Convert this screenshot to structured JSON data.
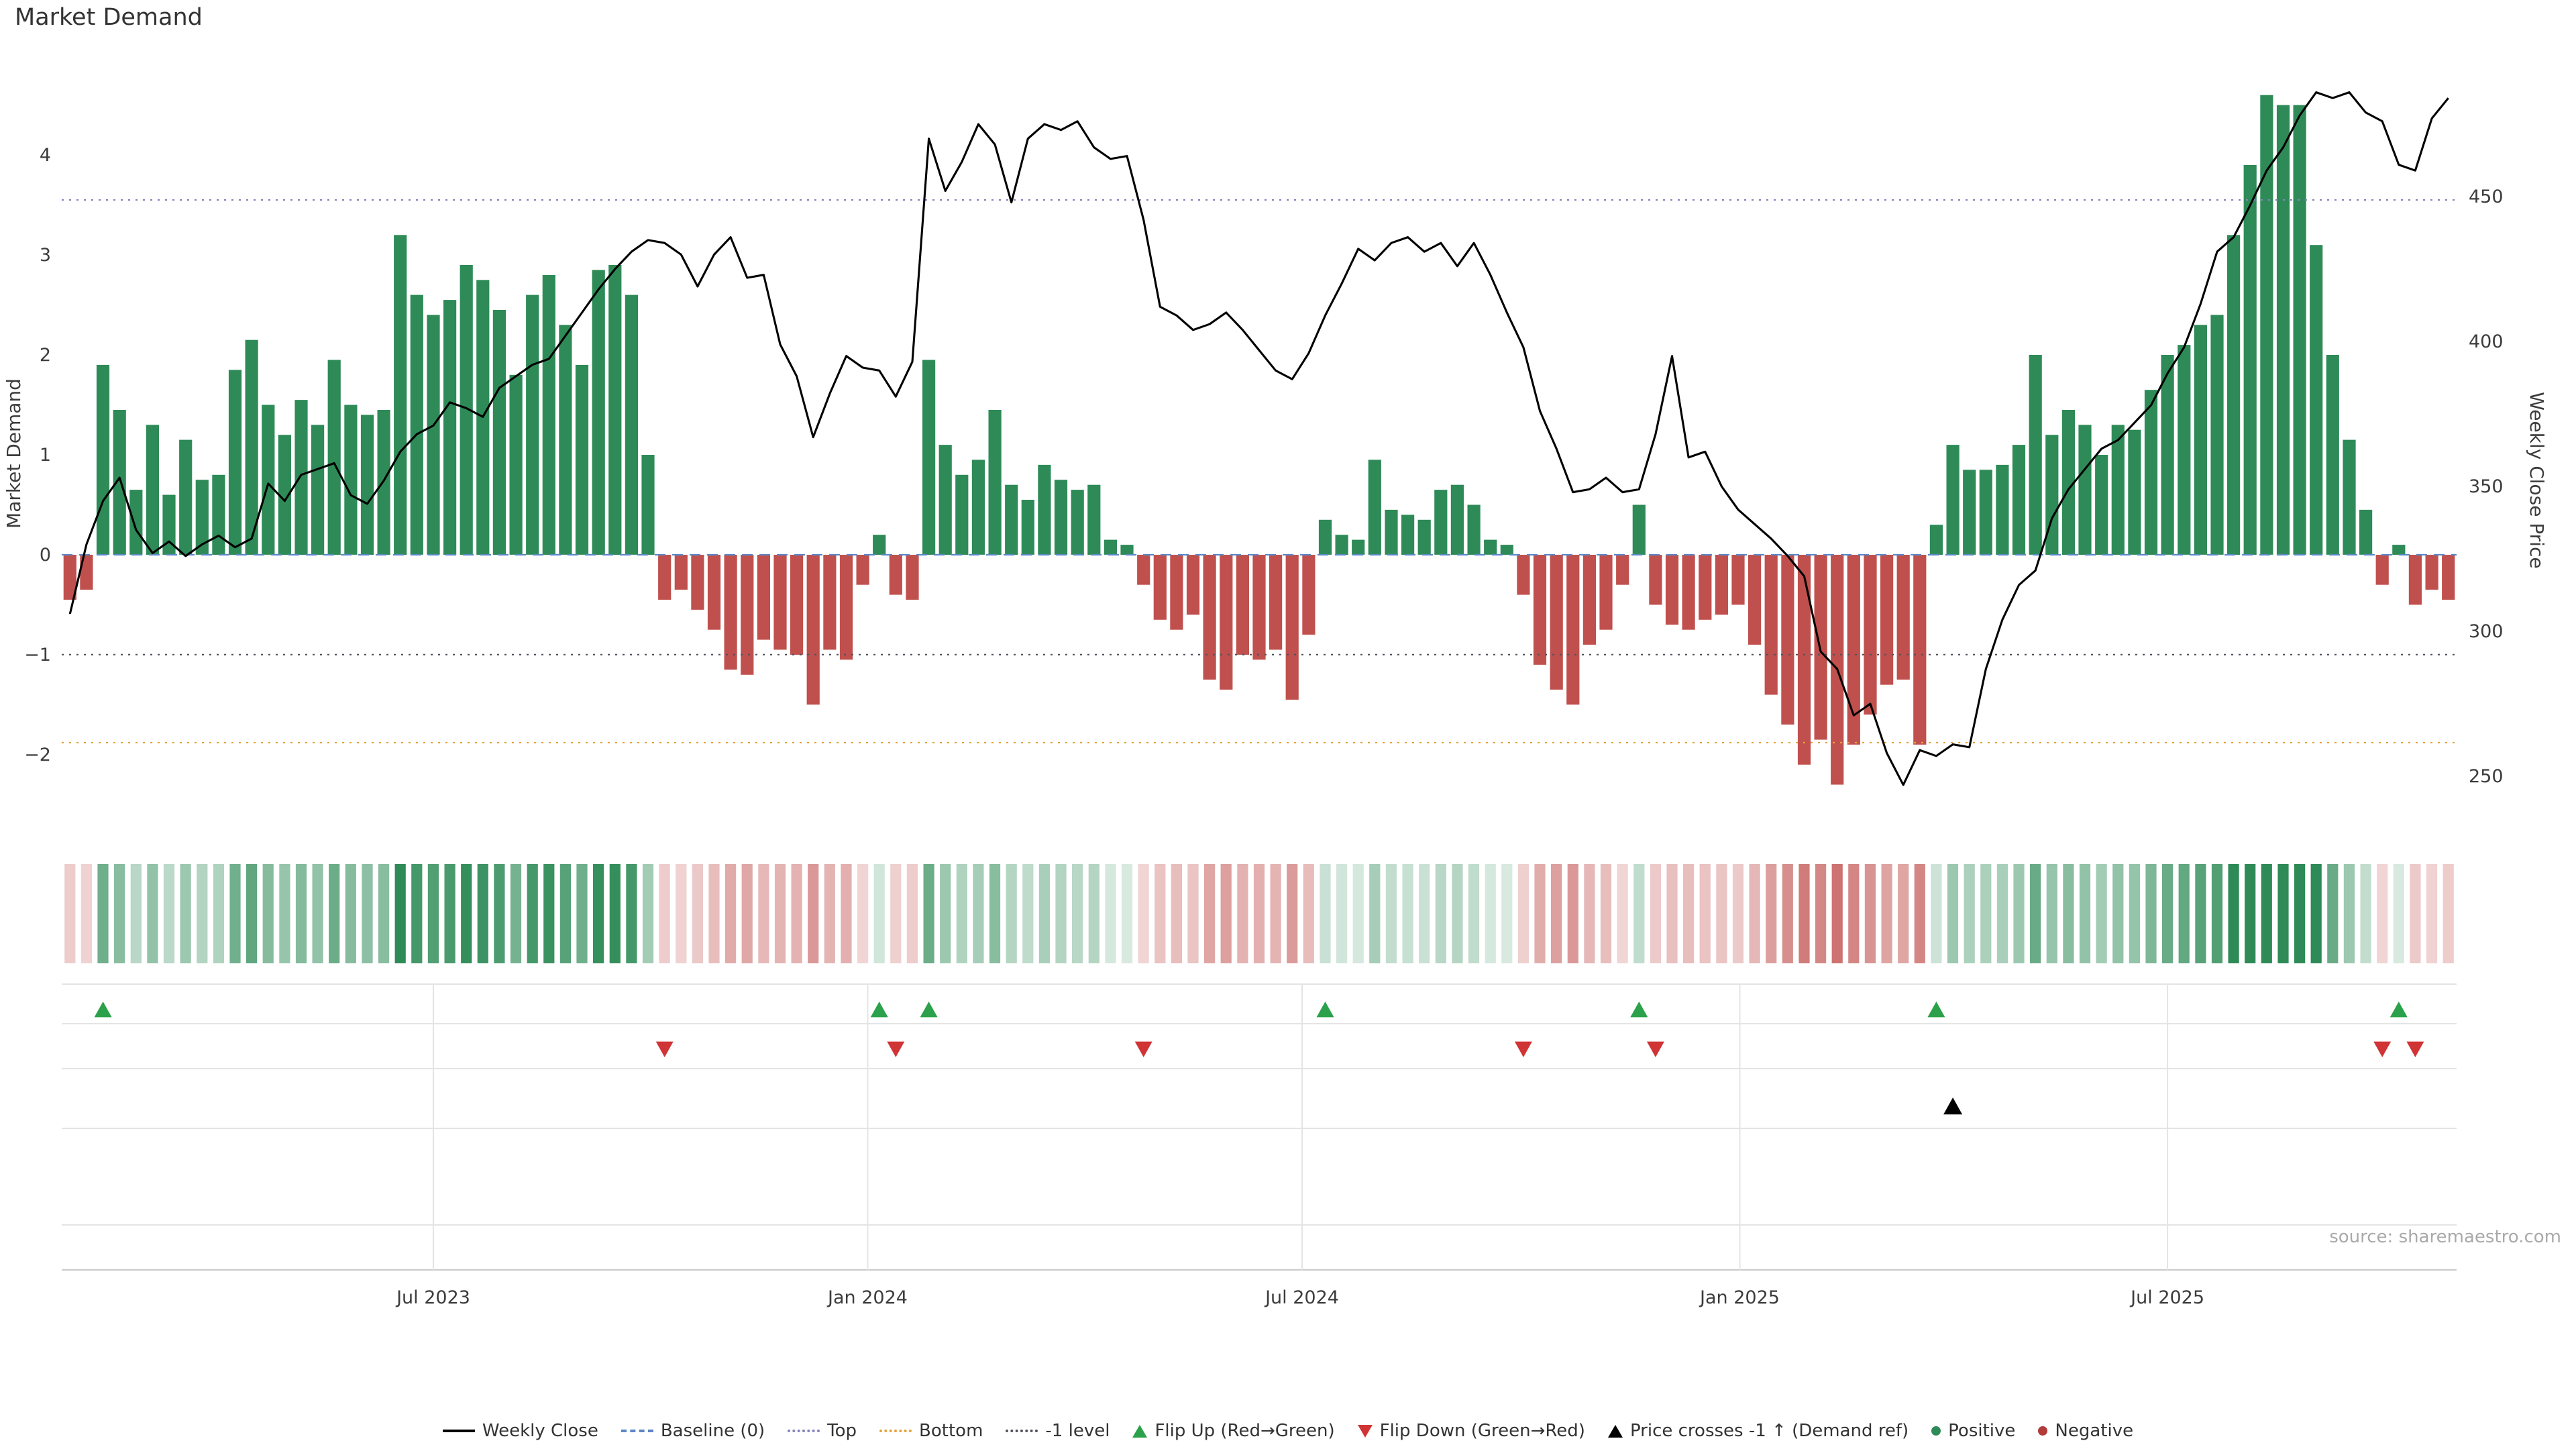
{
  "page": {
    "title": "Market Demand",
    "source": "source: sharemaestro.com"
  },
  "chart_data": {
    "type": "bar+line",
    "title": "Market Demand",
    "x": {
      "unit": "week",
      "count": 145,
      "ticks": [
        {
          "label": "Jul 2023",
          "index": 22
        },
        {
          "label": "Jan 2024",
          "index": 48.3
        },
        {
          "label": "Jul 2024",
          "index": 74.6
        },
        {
          "label": "Jan 2025",
          "index": 101.1
        },
        {
          "label": "Jul 2025",
          "index": 127
        }
      ]
    },
    "left_axis": {
      "label": "Market Demand",
      "range": [
        -2.86,
        4.88
      ],
      "ticks": [
        {
          "label": "−2",
          "value": -2
        },
        {
          "label": "−1",
          "value": -1
        },
        {
          "label": "0",
          "value": 0
        },
        {
          "label": "1",
          "value": 1
        },
        {
          "label": "2",
          "value": 2
        },
        {
          "label": "3",
          "value": 3
        },
        {
          "label": "4",
          "value": 4
        }
      ]
    },
    "right_axis": {
      "label": "Weekly Close Price",
      "range": [
        227.8,
        494.7
      ],
      "ticks": [
        {
          "label": "250",
          "value": 250
        },
        {
          "label": "300",
          "value": 300
        },
        {
          "label": "350",
          "value": 350
        },
        {
          "label": "400",
          "value": 400
        },
        {
          "label": "450",
          "value": 450
        }
      ]
    },
    "reference_lines": [
      {
        "name": "Baseline (0)",
        "value": 0,
        "style": "dashed",
        "color": "#5b87c5"
      },
      {
        "name": "Top",
        "value": 3.55,
        "style": "dotted",
        "color": "#8383c2"
      },
      {
        "name": "Bottom",
        "value": -1.88,
        "style": "dotted",
        "color": "#e5a23c"
      },
      {
        "name": "-1 level",
        "value": -1.0,
        "style": "dotted",
        "color": "#52525e"
      }
    ],
    "series": [
      {
        "name": "Market Demand",
        "type": "bar",
        "color_positive": "#2e8b57",
        "color_negative": "#c0504d",
        "values": [
          -0.45,
          -0.35,
          1.9,
          1.45,
          0.65,
          1.3,
          0.6,
          1.15,
          0.75,
          0.8,
          1.85,
          2.15,
          1.5,
          1.2,
          1.55,
          1.3,
          1.95,
          1.5,
          1.4,
          1.45,
          3.2,
          2.6,
          2.4,
          2.55,
          2.9,
          2.75,
          2.45,
          1.8,
          2.6,
          2.8,
          2.3,
          1.9,
          2.85,
          2.9,
          2.6,
          1.0,
          -0.45,
          -0.35,
          -0.55,
          -0.75,
          -1.15,
          -1.2,
          -0.85,
          -0.95,
          -1.0,
          -1.5,
          -0.95,
          -1.05,
          -0.3,
          0.2,
          -0.4,
          -0.45,
          1.95,
          1.1,
          0.8,
          0.95,
          1.45,
          0.7,
          0.55,
          0.9,
          0.75,
          0.65,
          0.7,
          0.15,
          0.1,
          -0.3,
          -0.65,
          -0.75,
          -0.6,
          -1.25,
          -1.35,
          -1.0,
          -1.05,
          -0.95,
          -1.45,
          -0.8,
          0.35,
          0.2,
          0.15,
          0.95,
          0.45,
          0.4,
          0.35,
          0.65,
          0.7,
          0.5,
          0.15,
          0.1,
          -0.4,
          -1.1,
          -1.35,
          -1.5,
          -0.9,
          -0.75,
          -0.3,
          0.5,
          -0.5,
          -0.7,
          -0.75,
          -0.65,
          -0.6,
          -0.5,
          -0.9,
          -1.4,
          -1.7,
          -2.1,
          -1.85,
          -2.3,
          -1.9,
          -1.6,
          -1.3,
          -1.25,
          -1.9,
          0.3,
          1.1,
          0.85,
          0.85,
          0.9,
          1.1,
          2.0,
          1.2,
          1.45,
          1.3,
          1.0,
          1.3,
          1.25,
          1.65,
          2.0,
          2.1,
          2.3,
          2.4,
          3.2,
          3.9,
          4.6,
          4.5,
          4.5,
          3.1,
          2.0,
          1.15,
          0.45,
          -0.3,
          0.1,
          -0.5,
          -0.35,
          -0.45
        ]
      },
      {
        "name": "Weekly Close",
        "type": "line",
        "color": "#000000",
        "values": [
          306,
          330,
          345,
          353,
          335,
          327,
          331,
          326,
          330,
          333,
          329,
          332,
          351,
          345,
          354,
          356,
          358,
          347,
          344,
          352,
          362,
          368,
          371,
          379,
          377,
          374,
          384,
          388,
          392,
          394,
          402,
          410,
          418,
          425,
          431,
          435,
          434,
          430,
          419,
          430,
          436,
          422,
          423,
          399,
          388,
          367,
          382,
          395,
          391,
          390,
          381,
          393,
          470,
          452,
          462,
          475,
          468,
          448,
          470,
          475,
          473,
          476,
          467,
          463,
          464,
          442,
          412,
          409,
          404,
          406,
          410,
          404,
          397,
          390,
          387,
          396,
          409,
          420,
          432,
          428,
          434,
          436,
          431,
          434,
          426,
          434,
          423,
          410,
          398,
          376,
          363,
          348,
          349,
          353,
          348,
          349,
          368,
          395,
          360,
          362,
          350,
          342,
          337,
          332,
          326,
          319,
          293,
          287,
          271,
          275,
          258,
          247,
          259,
          257,
          261,
          260,
          287,
          304,
          316,
          321,
          339,
          349,
          356,
          363,
          366,
          372,
          378,
          389,
          398,
          413,
          431,
          436,
          447,
          459,
          467,
          478,
          486,
          484,
          486,
          479,
          476,
          461,
          459,
          477,
          484
        ]
      }
    ],
    "markers": {
      "flip_up": {
        "label": "Flip Up (Red→Green)",
        "color": "#2aa14a",
        "indices": [
          2,
          49,
          52,
          76,
          95,
          113,
          141
        ]
      },
      "flip_down": {
        "label": "Flip Down (Green→Red)",
        "color": "#d03434",
        "indices": [
          36,
          50,
          65,
          88,
          96,
          140,
          142
        ]
      },
      "price_cross": {
        "label": "Price crosses -1 ↑ (Demand ref)",
        "color": "#000000",
        "indices": [
          114
        ]
      }
    },
    "heatmap": {
      "source": "demand",
      "positive_color": "#2e8b57",
      "negative_color": "#c0504d",
      "max_intensity": 3.0
    }
  },
  "legend": {
    "items": [
      {
        "label": "Weekly Close",
        "glyph": "line",
        "color": "#000000"
      },
      {
        "label": "Baseline (0)",
        "glyph": "dashed",
        "color": "#5b87c5"
      },
      {
        "label": "Top",
        "glyph": "dotted",
        "color": "#8383c2"
      },
      {
        "label": "Bottom",
        "glyph": "dotted",
        "color": "#e5a23c"
      },
      {
        "label": "-1 level",
        "glyph": "dotted",
        "color": "#52525e"
      },
      {
        "label": "Flip Up (Red→Green)",
        "glyph": "triangle-up",
        "color": "#2aa14a"
      },
      {
        "label": "Flip Down (Green→Red)",
        "glyph": "triangle-down",
        "color": "#d03434"
      },
      {
        "label": "Price crosses -1 ↑ (Demand ref)",
        "glyph": "triangle-up",
        "color": "#000000"
      },
      {
        "label": "Positive",
        "glyph": "dot",
        "color": "#2e8b57"
      },
      {
        "label": "Negative",
        "glyph": "dot",
        "color": "#b23b3b"
      }
    ]
  }
}
